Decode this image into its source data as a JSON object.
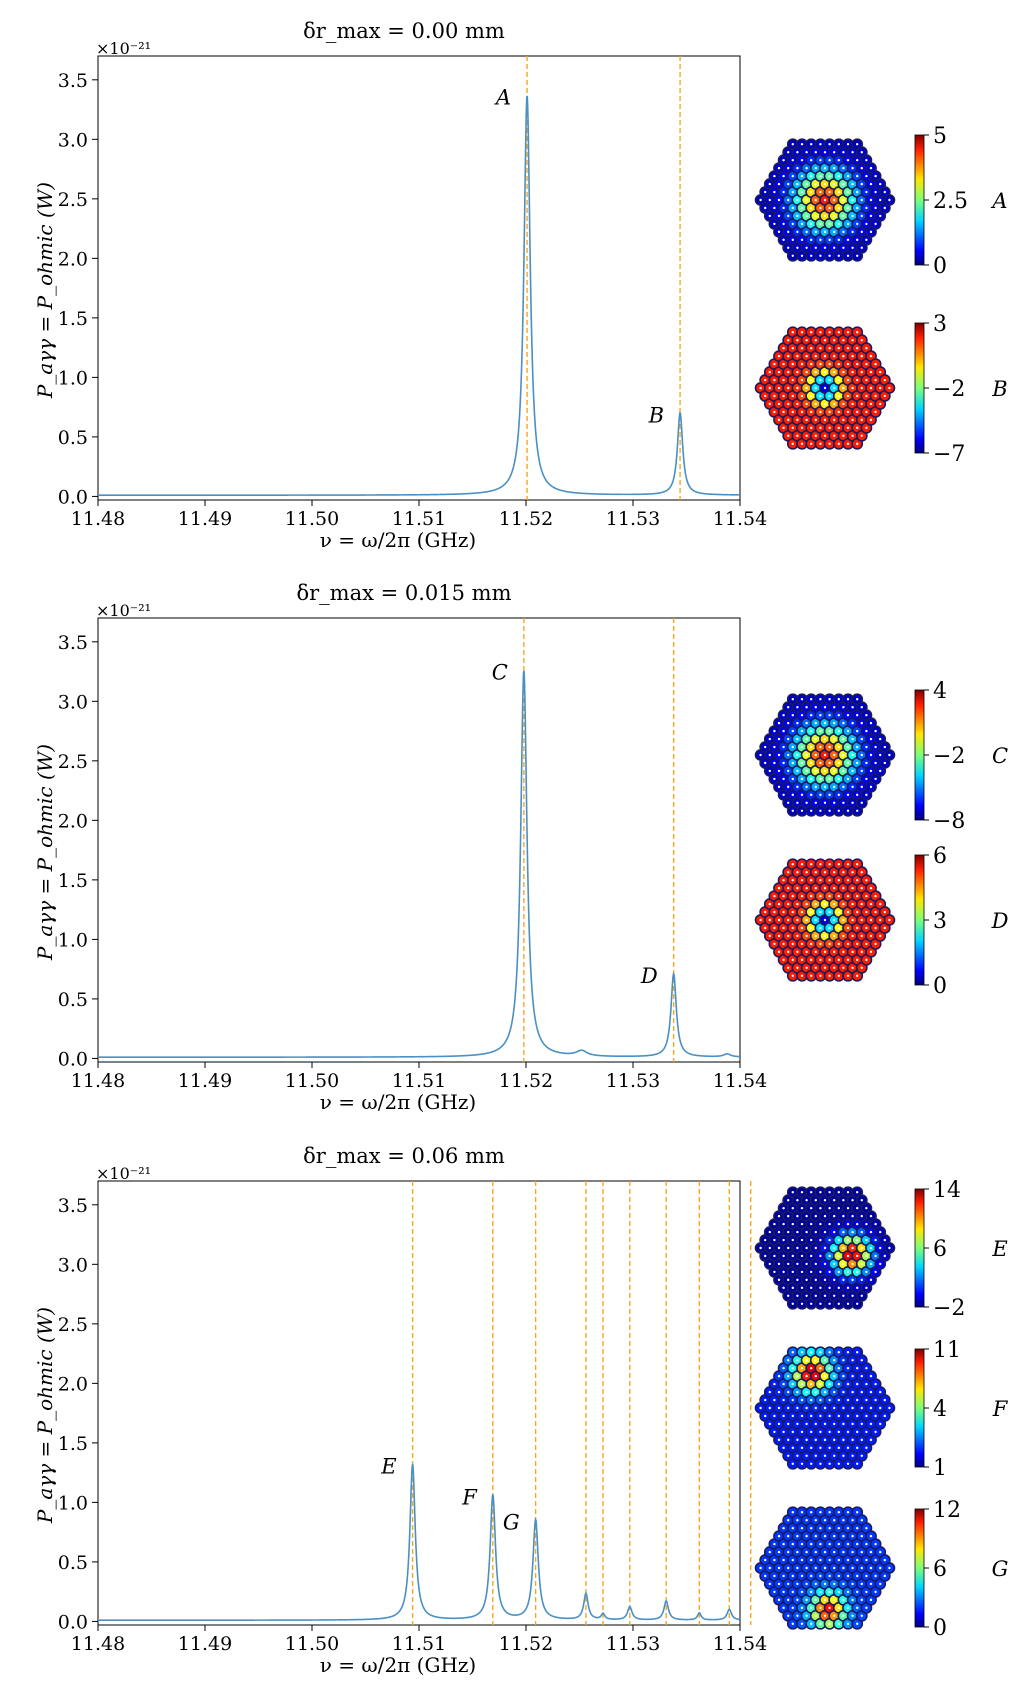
{
  "figure": {
    "panels": [
      {
        "title": "δr_max = 0.00 mm",
        "scale_label": "×10⁻²¹",
        "ylabel": "P_aγγ = P_ohmic (W)",
        "xlabel": "ν = ω/2π (GHz)"
      },
      {
        "title": "δr_max = 0.015 mm",
        "scale_label": "×10⁻²¹",
        "ylabel": "P_aγγ = P_ohmic (W)",
        "xlabel": "ν = ω/2π (GHz)"
      },
      {
        "title": "δr_max = 0.06 mm",
        "scale_label": "×10⁻²¹",
        "ylabel": "P_aγγ = P_ohmic (W)",
        "xlabel": "ν = ω/2π (GHz)"
      }
    ]
  },
  "colors": {
    "curve": "#4a90c4",
    "vline": "#f5a623",
    "axis": "#000000"
  },
  "chart_data": [
    {
      "type": "line",
      "title": "δr_max = 0.00 mm",
      "xlabel": "ν = ω/2π (GHz)",
      "ylabel": "P_aγγ = P_ohmic (W)",
      "scale": "×10⁻²¹",
      "xlim": [
        11.48,
        11.54
      ],
      "ylim": [
        -0.03,
        3.7
      ],
      "xticks": [
        "11.48",
        "11.49",
        "11.50",
        "11.51",
        "11.52",
        "11.53",
        "11.54"
      ],
      "yticks": [
        "0.0",
        "0.5",
        "1.0",
        "1.5",
        "2.0",
        "2.5",
        "3.0",
        "3.5"
      ],
      "grid": false,
      "vlines": [
        11.5201,
        11.5344
      ],
      "peaks": [
        {
          "x": 11.5201,
          "y": 3.36,
          "width": 0.00035,
          "label": "A"
        },
        {
          "x": 11.5344,
          "y": 0.69,
          "width": 0.0003,
          "label": "B"
        }
      ],
      "baseline": 0.01,
      "insets": [
        {
          "label": "A",
          "pattern": "center",
          "ticks": [
            "5",
            "2.5",
            "0"
          ]
        },
        {
          "label": "B",
          "pattern": "ring",
          "ticks": [
            "3",
            "−2",
            "−7"
          ]
        }
      ]
    },
    {
      "type": "line",
      "title": "δr_max = 0.015 mm",
      "xlabel": "ν = ω/2π (GHz)",
      "ylabel": "P_aγγ = P_ohmic (W)",
      "scale": "×10⁻²¹",
      "xlim": [
        11.48,
        11.54
      ],
      "ylim": [
        -0.03,
        3.7
      ],
      "xticks": [
        "11.48",
        "11.49",
        "11.50",
        "11.51",
        "11.52",
        "11.53",
        "11.54"
      ],
      "yticks": [
        "0.0",
        "0.5",
        "1.0",
        "1.5",
        "2.0",
        "2.5",
        "3.0",
        "3.5"
      ],
      "grid": false,
      "vlines": [
        11.5198,
        11.5338
      ],
      "peaks": [
        {
          "x": 11.5198,
          "y": 3.25,
          "width": 0.00035,
          "label": "C"
        },
        {
          "x": 11.5338,
          "y": 0.7,
          "width": 0.0003,
          "label": "D"
        },
        {
          "x": 11.5252,
          "y": 0.045,
          "width": 0.0006,
          "label": ""
        },
        {
          "x": 11.5388,
          "y": 0.025,
          "width": 0.0004,
          "label": ""
        }
      ],
      "baseline": 0.01,
      "insets": [
        {
          "label": "C",
          "pattern": "center",
          "ticks": [
            "4",
            "−2",
            "−8"
          ]
        },
        {
          "label": "D",
          "pattern": "ring",
          "ticks": [
            "6",
            "3",
            "0"
          ]
        }
      ]
    },
    {
      "type": "line",
      "title": "δr_max = 0.06 mm",
      "xlabel": "ν = ω/2π (GHz)",
      "ylabel": "P_aγγ = P_ohmic (W)",
      "scale": "×10⁻²¹",
      "xlim": [
        11.48,
        11.54
      ],
      "ylim": [
        -0.03,
        3.7
      ],
      "xticks": [
        "11.48",
        "11.49",
        "11.50",
        "11.51",
        "11.52",
        "11.53",
        "11.54"
      ],
      "yticks": [
        "0.0",
        "0.5",
        "1.0",
        "1.5",
        "2.0",
        "2.5",
        "3.0",
        "3.5"
      ],
      "grid": false,
      "vlines": [
        11.5094,
        11.5169,
        11.5209,
        11.5256,
        11.5272,
        11.5297,
        11.5331,
        11.5362,
        11.539,
        11.541
      ],
      "peaks": [
        {
          "x": 11.5094,
          "y": 1.31,
          "width": 0.0003,
          "label": "E"
        },
        {
          "x": 11.5169,
          "y": 1.05,
          "width": 0.0003,
          "label": "F"
        },
        {
          "x": 11.5209,
          "y": 0.84,
          "width": 0.0003,
          "label": "G"
        },
        {
          "x": 11.5256,
          "y": 0.22,
          "width": 0.00025,
          "label": ""
        },
        {
          "x": 11.5272,
          "y": 0.05,
          "width": 0.0002,
          "label": ""
        },
        {
          "x": 11.5297,
          "y": 0.11,
          "width": 0.00025,
          "label": ""
        },
        {
          "x": 11.5331,
          "y": 0.16,
          "width": 0.00025,
          "label": ""
        },
        {
          "x": 11.5362,
          "y": 0.06,
          "width": 0.0002,
          "label": ""
        },
        {
          "x": 11.539,
          "y": 0.09,
          "width": 0.00025,
          "label": ""
        }
      ],
      "baseline": 0.01,
      "insets": [
        {
          "label": "E",
          "pattern": "spot-right",
          "ticks": [
            "14",
            "6",
            "−2"
          ]
        },
        {
          "label": "F",
          "pattern": "spot-topleft",
          "ticks": [
            "11",
            "4",
            "1"
          ]
        },
        {
          "label": "G",
          "pattern": "spot-bottom",
          "ticks": [
            "12",
            "6",
            "0"
          ]
        }
      ]
    }
  ]
}
